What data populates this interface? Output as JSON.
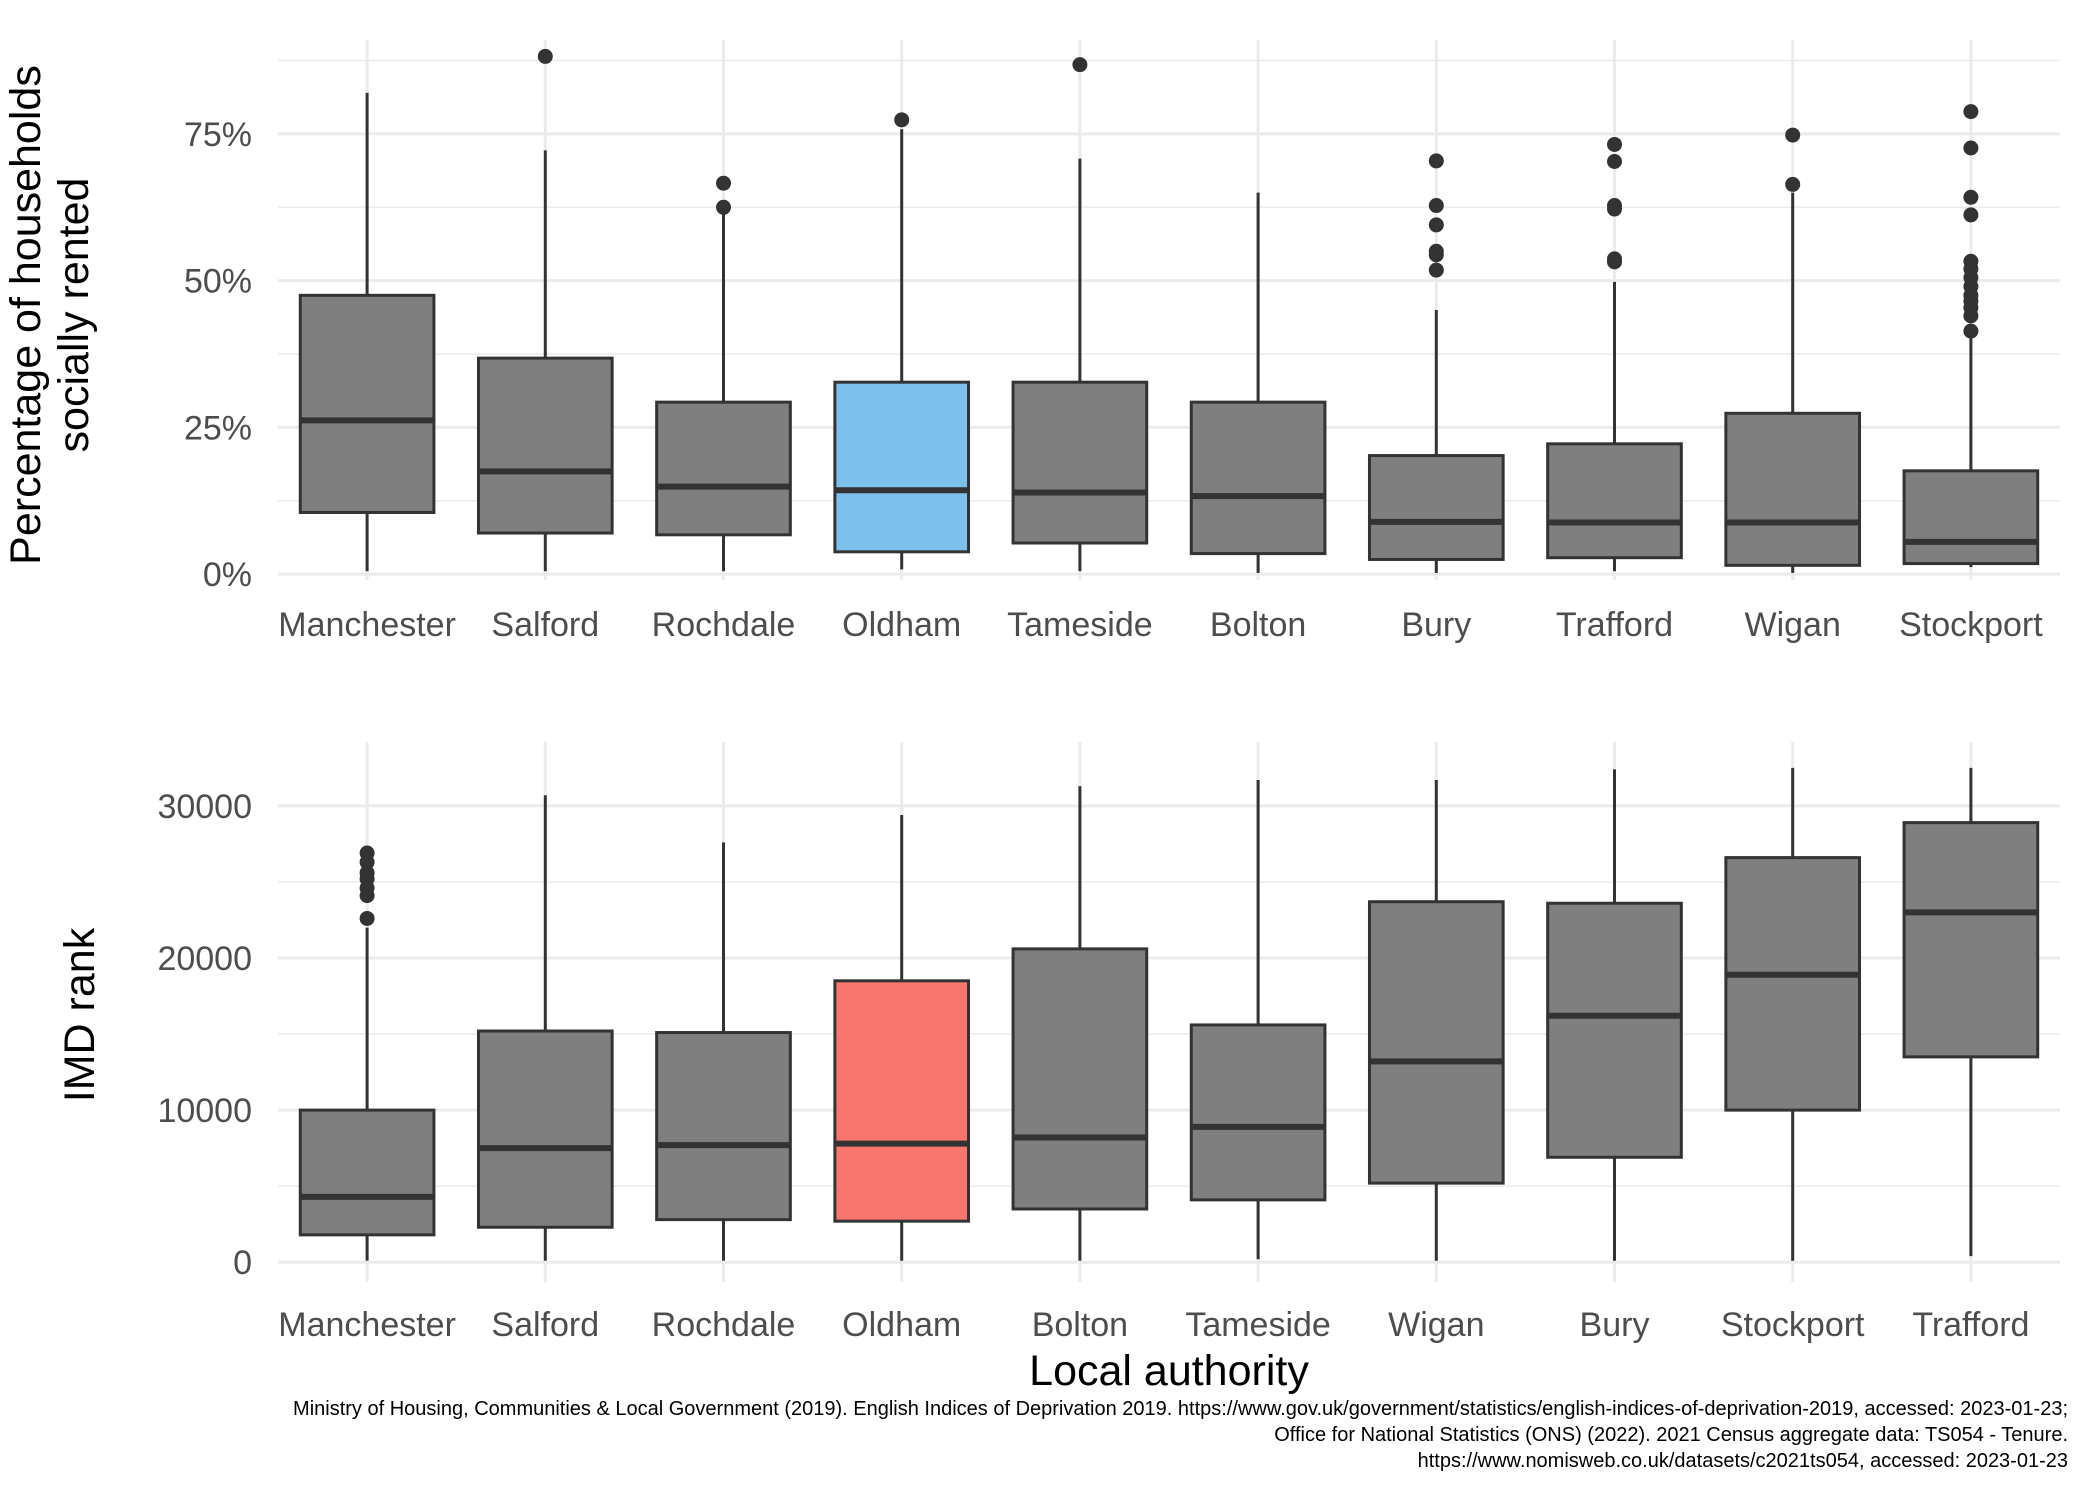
{
  "chart_data": [
    {
      "type": "box",
      "ylabel": [
        "Percentage of households",
        "socially rented"
      ],
      "xlabel": "",
      "y_ticks": [
        0,
        25,
        50,
        75
      ],
      "y_tick_labels": [
        "0%",
        "25%",
        "50%",
        "75%"
      ],
      "ylim": [
        -1,
        91
      ],
      "grid": true,
      "highlight": {
        "category": "Oldham",
        "color": "#7dc0ec"
      },
      "box_color": "#7f7f7f",
      "categories": [
        "Manchester",
        "Salford",
        "Rochdale",
        "Oldham",
        "Tameside",
        "Bolton",
        "Bury",
        "Trafford",
        "Wigan",
        "Stockport"
      ],
      "boxes": [
        {
          "label": "Manchester",
          "lower_whisker": 0.5,
          "q1": 10.5,
          "median": 26.2,
          "q3": 47.5,
          "upper_whisker": 82,
          "outliers": []
        },
        {
          "label": "Salford",
          "lower_whisker": 0.5,
          "q1": 7,
          "median": 17.5,
          "q3": 36.8,
          "upper_whisker": 72.2,
          "outliers": [
            88.2
          ]
        },
        {
          "label": "Rochdale",
          "lower_whisker": 0.5,
          "q1": 6.7,
          "median": 14.9,
          "q3": 29.3,
          "upper_whisker": 61.5,
          "outliers": [
            62.5,
            66.6
          ]
        },
        {
          "label": "Oldham",
          "lower_whisker": 0.8,
          "q1": 3.8,
          "median": 14.3,
          "q3": 32.7,
          "upper_whisker": 75.8,
          "outliers": [
            77.4
          ]
        },
        {
          "label": "Tameside",
          "lower_whisker": 0.5,
          "q1": 5.3,
          "median": 13.9,
          "q3": 32.7,
          "upper_whisker": 70.8,
          "outliers": [
            86.8
          ]
        },
        {
          "label": "Bolton",
          "lower_whisker": 0.2,
          "q1": 3.5,
          "median": 13.3,
          "q3": 29.3,
          "upper_whisker": 65,
          "outliers": []
        },
        {
          "label": "Bury",
          "lower_whisker": 0.2,
          "q1": 2.5,
          "median": 8.9,
          "q3": 20.2,
          "upper_whisker": 45,
          "outliers": [
            51.8,
            54.4,
            55,
            59.5,
            62.8,
            70.4
          ]
        },
        {
          "label": "Trafford",
          "lower_whisker": 0.5,
          "q1": 2.8,
          "median": 8.8,
          "q3": 22.2,
          "upper_whisker": 49.8,
          "outliers": [
            53.2,
            53.7,
            62.2,
            62.8,
            70.3,
            73.2
          ]
        },
        {
          "label": "Wigan",
          "lower_whisker": 0.2,
          "q1": 1.5,
          "median": 8.8,
          "q3": 27.4,
          "upper_whisker": 65,
          "outliers": [
            66.4,
            74.8
          ]
        },
        {
          "label": "Stockport",
          "lower_whisker": 1.2,
          "q1": 1.8,
          "median": 5.5,
          "q3": 17.6,
          "upper_whisker": 40.5,
          "outliers": [
            41.4,
            44,
            45.4,
            46.5,
            47.5,
            49,
            50.5,
            52,
            53.3,
            61.2,
            64.2,
            72.6,
            78.8
          ]
        }
      ]
    },
    {
      "type": "box",
      "ylabel": [
        "IMD rank"
      ],
      "xlabel": "Local authority",
      "y_ticks": [
        0,
        10000,
        20000,
        30000
      ],
      "y_tick_labels": [
        "0",
        "10000",
        "20000",
        "30000"
      ],
      "ylim": [
        -1300,
        34200
      ],
      "grid": true,
      "highlight": {
        "category": "Oldham",
        "color": "#f8766d"
      },
      "box_color": "#7f7f7f",
      "categories": [
        "Manchester",
        "Salford",
        "Rochdale",
        "Oldham",
        "Bolton",
        "Tameside",
        "Wigan",
        "Bury",
        "Stockport",
        "Trafford"
      ],
      "boxes": [
        {
          "label": "Manchester",
          "lower_whisker": 100,
          "q1": 1800,
          "median": 4300,
          "q3": 10000,
          "upper_whisker": 22000,
          "outliers": [
            22600,
            24100,
            24600,
            25200,
            25600,
            26300,
            26900
          ]
        },
        {
          "label": "Salford",
          "lower_whisker": 100,
          "q1": 2300,
          "median": 7500,
          "q3": 15200,
          "upper_whisker": 30700,
          "outliers": []
        },
        {
          "label": "Rochdale",
          "lower_whisker": 100,
          "q1": 2800,
          "median": 7700,
          "q3": 15100,
          "upper_whisker": 27600,
          "outliers": []
        },
        {
          "label": "Oldham",
          "lower_whisker": 100,
          "q1": 2700,
          "median": 7800,
          "q3": 18500,
          "upper_whisker": 29400,
          "outliers": []
        },
        {
          "label": "Bolton",
          "lower_whisker": 100,
          "q1": 3500,
          "median": 8200,
          "q3": 20600,
          "upper_whisker": 31300,
          "outliers": []
        },
        {
          "label": "Tameside",
          "lower_whisker": 200,
          "q1": 4100,
          "median": 8900,
          "q3": 15600,
          "upper_whisker": 31700,
          "outliers": []
        },
        {
          "label": "Wigan",
          "lower_whisker": 100,
          "q1": 5200,
          "median": 13200,
          "q3": 23700,
          "upper_whisker": 31700,
          "outliers": []
        },
        {
          "label": "Bury",
          "lower_whisker": 100,
          "q1": 6900,
          "median": 16200,
          "q3": 23600,
          "upper_whisker": 32400,
          "outliers": []
        },
        {
          "label": "Stockport",
          "lower_whisker": 100,
          "q1": 10000,
          "median": 18900,
          "q3": 26600,
          "upper_whisker": 32500,
          "outliers": []
        },
        {
          "label": "Trafford",
          "lower_whisker": 400,
          "q1": 13500,
          "median": 23000,
          "q3": 28900,
          "upper_whisker": 32500,
          "outliers": []
        }
      ]
    }
  ],
  "caption": [
    "Ministry of Housing, Communities & Local Government (2019). English Indices of Deprivation 2019. https://www.gov.uk/government/statistics/english-indices-of-deprivation-2019, accessed: 2023-01-23;",
    "Office for National Statistics (ONS) (2022). 2021 Census aggregate data: TS054 - Tenure.",
    "https://www.nomisweb.co.uk/datasets/c2021ts054, accessed: 2023-01-23"
  ]
}
